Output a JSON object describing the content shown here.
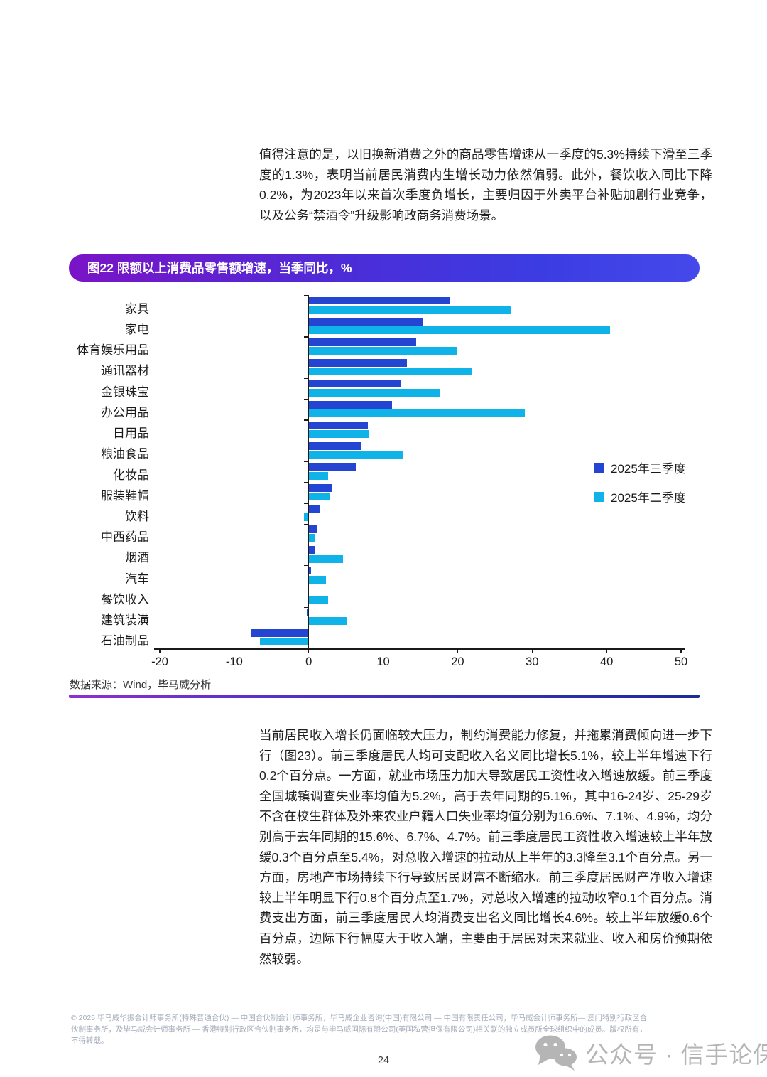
{
  "page": {
    "intro_paragraph": "值得注意的是，以旧换新消费之外的商品零售增速从一季度的5.3%持续下滑至三季度的1.3%，表明当前居民消费内生增长动力依然偏弱。此外，餐饮收入同比下降0.2%，为2023年以来首次季度负增长，主要归因于外卖平台补贴加剧行业竞争，以及公务“禁酒令”升级影响政商务消费场景。",
    "body_paragraph": "当前居民收入增长仍面临较大压力，制约消费能力修复，并拖累消费倾向进一步下行（图23）。前三季度居民人均可支配收入名义同比增长5.1%，较上半年增速下行0.2个百分点。一方面，就业市场压力加大导致居民工资性收入增速放缓。前三季度全国城镇调查失业率均值为5.2%，高于去年同期的5.1%，其中16-24岁、25-29岁不含在校生群体及外来农业户籍人口失业率均值分别为16.6%、7.1%、4.9%，均分别高于去年同期的15.6%、6.7%、4.7%。前三季度居民工资性收入增速较上半年放缓0.3个百分点至5.4%，对总收入增速的拉动从上半年的3.3降至3.1个百分点。另一方面，房地产市场持续下行导致居民财富不断缩水。前三季度居民财产净收入增速较上半年明显下行0.8个百分点至1.7%，对总收入增速的拉动收窄0.1个百分点。消费支出方面，前三季度居民人均消费支出名义同比增长4.6%。较上半年放缓0.6个百分点，边际下行幅度大于收入端，主要由于居民对未来就业、收入和房价预期依然较弱。",
    "footer_text": "© 2025 毕马威华振会计师事务所(特殊普通合伙) — 中国合伙制会计师事务所，毕马威企业咨询(中国)有限公司 — 中国有限责任公司，毕马威会计师事务所— 澳门特别行政区合伙制事务所，及毕马威会计师事务所 — 香港特别行政区合伙制事务所，均是与毕马威国际有限公司(英国私营担保有限公司)相关联的独立成员所全球组织中的成员。版权所有，不得转载。",
    "page_number": "24",
    "watermark_text": "公众号 · 信手论保"
  },
  "chart_data": {
    "type": "bar",
    "orientation": "horizontal",
    "title": "图22 限额以上消费品零售额增速，当季同比，%",
    "source": "数据来源：Wind，毕马威分析",
    "categories": [
      "家具",
      "家电",
      "体育娱乐用品",
      "通讯器材",
      "金银珠宝",
      "办公用品",
      "日用品",
      "粮油食品",
      "化妆品",
      "服装鞋帽",
      "饮料",
      "中西药品",
      "烟酒",
      "汽车",
      "餐饮收入",
      "建筑装潢",
      "石油制品"
    ],
    "series": [
      {
        "name": "2025年三季度",
        "color": "#2345d1",
        "values": [
          18.9,
          15.3,
          14.4,
          13.2,
          12.3,
          11.2,
          7.9,
          7.0,
          6.3,
          3.1,
          1.5,
          1.1,
          0.9,
          0.3,
          -0.2,
          -0.3,
          -7.7
        ]
      },
      {
        "name": "2025年二季度",
        "color": "#10b3e8",
        "values": [
          27.2,
          40.5,
          19.9,
          21.9,
          17.6,
          29.0,
          8.1,
          12.6,
          2.6,
          2.9,
          -0.6,
          0.8,
          4.6,
          2.3,
          2.6,
          5.1,
          -6.6
        ]
      }
    ],
    "xlim": [
      -20,
      50
    ],
    "xticks": [
      -20,
      -10,
      0,
      10,
      20,
      30,
      40,
      50
    ],
    "xlabel": "",
    "ylabel": "",
    "grid": false,
    "legend_position": "right-middle"
  }
}
